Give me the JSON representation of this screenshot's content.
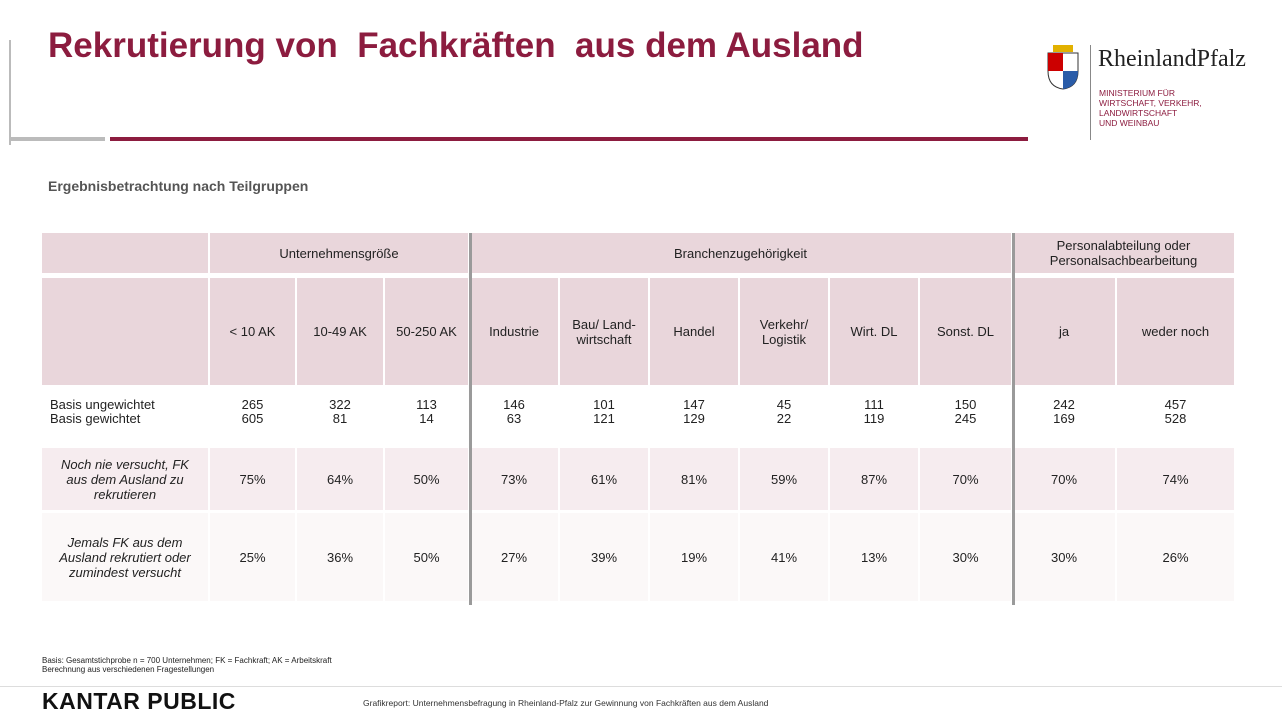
{
  "header": {
    "title": "Rekrutierung von  Fachkräften  aus dem Ausland",
    "logo": {
      "name": "RheinlandPfalz",
      "ministry": [
        "MINISTERIUM FÜR",
        "WIRTSCHAFT, VERKEHR,",
        "LANDWIRTSCHAFT",
        "UND WEINBAU"
      ]
    }
  },
  "subtitle": "Ergebnisbetrachtung nach Teilgruppen",
  "table": {
    "groups": [
      {
        "label": "Unternehmensgröße",
        "span": 3
      },
      {
        "label": "Branchenzugehörigkeit",
        "span": 6
      },
      {
        "label": "Personalabteilung oder Personalsachbearbeitung",
        "span": 2
      }
    ],
    "columns": [
      "< 10 AK",
      "10-49 AK",
      "50-250 AK",
      "Industrie",
      "Bau/ Land-wirtschaft",
      "Handel",
      "Verkehr/ Logistik",
      "Wirt. DL",
      "Sonst. DL",
      "ja",
      "weder noch"
    ],
    "basis_rows": [
      {
        "label": "Basis ungewichtet",
        "values": [
          265,
          322,
          113,
          146,
          101,
          147,
          45,
          111,
          150,
          242,
          457
        ]
      },
      {
        "label": "Basis gewichtet",
        "values": [
          605,
          81,
          14,
          63,
          121,
          129,
          22,
          119,
          245,
          169,
          528
        ]
      }
    ],
    "rows": [
      {
        "label": "Noch nie versucht, FK aus dem Ausland zu rekrutieren",
        "values": [
          "75%",
          "64%",
          "50%",
          "73%",
          "61%",
          "81%",
          "59%",
          "87%",
          "70%",
          "70%",
          "74%"
        ]
      },
      {
        "label": "Jemals FK aus dem Ausland rekrutiert oder zumindest versucht",
        "values": [
          "25%",
          "36%",
          "50%",
          "27%",
          "39%",
          "19%",
          "41%",
          "13%",
          "30%",
          "30%",
          "26%"
        ]
      }
    ]
  },
  "footer": {
    "notes": [
      "Basis: Gesamtstichprobe  n = 700 Unternehmen;  FK = Fachkraft;  AK = Arbeitskraft",
      "Berechnung aus verschiedenen Fragestellungen"
    ],
    "brand": "KANTAR PUBLIC",
    "report": "Grafikreport: Unternehmensbefragung in Rheinland-Pfalz zur Gewinnung von Fachkräften aus dem Ausland"
  }
}
